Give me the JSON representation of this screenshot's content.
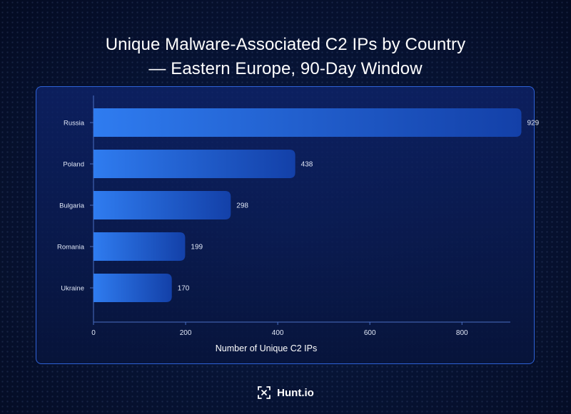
{
  "title_line1": "Unique Malware-Associated C2 IPs by Country",
  "title_line2": "— Eastern Europe, 90-Day Window",
  "brand": {
    "name": "Hunt.io",
    "icon": "hunt-logo-icon"
  },
  "colors": {
    "background": "#040b22",
    "panel_border": "#2f63d8",
    "bar_start": "#2f7cf0",
    "bar_end": "#1340a8",
    "text": "#ffffff"
  },
  "chart_data": {
    "type": "bar",
    "orientation": "horizontal",
    "categories": [
      "Russia",
      "Poland",
      "Bulgaria",
      "Romania",
      "Ukraine"
    ],
    "values": [
      929,
      438,
      298,
      199,
      170
    ],
    "xlabel": "Number of Unique C2 IPs",
    "ylabel": "",
    "xticks": [
      "0",
      "200",
      "400",
      "600",
      "800"
    ],
    "xlim": [
      0,
      905
    ],
    "grid": false
  }
}
